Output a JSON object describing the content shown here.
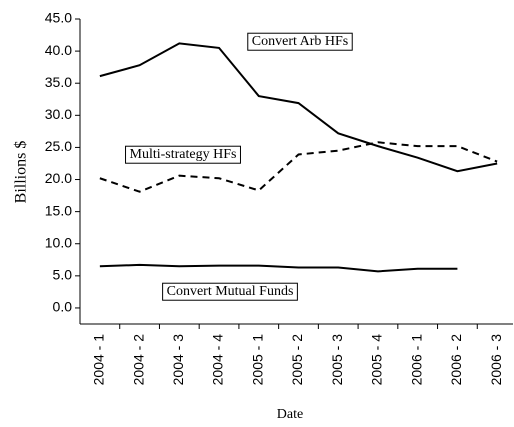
{
  "chart_data": {
    "type": "line",
    "y_label": "Billions $",
    "x_label": "Date",
    "categories": [
      "2004 - 1",
      "2004 - 2",
      "2004 - 3",
      "2004 - 4",
      "2005 - 1",
      "2005 - 2",
      "2005 - 3",
      "2005 - 4",
      "2006 - 1",
      "2006 - 2",
      "2006 - 3"
    ],
    "series": [
      {
        "name": "Convert Arb HFs",
        "color": "#000000",
        "dash": "solid",
        "values": [
          36.1,
          37.8,
          41.2,
          40.5,
          33.0,
          31.9,
          27.2,
          25.2,
          23.4,
          21.3,
          22.5
        ]
      },
      {
        "name": "Multi-strategy HFs",
        "color": "#000000",
        "dash": "dashed",
        "values": [
          20.2,
          18.1,
          20.6,
          20.2,
          18.3,
          23.9,
          24.5,
          25.8,
          25.2,
          25.2,
          22.8
        ]
      },
      {
        "name": "Convert Mutual Funds",
        "color": "#000000",
        "dash": "solid",
        "values": [
          6.5,
          6.7,
          6.5,
          6.6,
          6.6,
          6.3,
          6.3,
          5.7,
          6.1,
          6.1,
          null
        ]
      }
    ],
    "ylim": [
      -2.5,
      45
    ],
    "yticks": [
      {
        "value": 0,
        "label": "0.0"
      },
      {
        "value": 5,
        "label": "5.0"
      },
      {
        "value": 10,
        "label": "10.0"
      },
      {
        "value": 15,
        "label": "15.0"
      },
      {
        "value": 20,
        "label": "20.0"
      },
      {
        "value": 25,
        "label": "25.0"
      },
      {
        "value": 30,
        "label": "30.0"
      },
      {
        "value": 35,
        "label": "35.0"
      },
      {
        "value": 40,
        "label": "40.0"
      },
      {
        "value": 45,
        "label": "45.0"
      }
    ],
    "grid": false
  }
}
